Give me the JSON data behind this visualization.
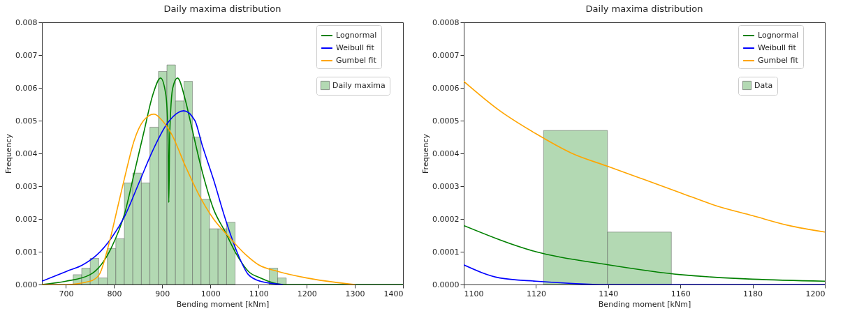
{
  "chart_data": [
    {
      "type": "histogram",
      "title": "Daily maxima distribution",
      "xlabel": "Bending moment [kNm]",
      "ylabel": "Frequency",
      "xlim": [
        650,
        1400
      ],
      "xticks": [
        700,
        800,
        900,
        1000,
        1100,
        1200,
        1300,
        1400
      ],
      "ylim": [
        0,
        0.008
      ],
      "yticks": [
        {
          "value": 0,
          "label": "0.000"
        },
        0.001,
        0.002,
        0.003,
        0.004,
        0.005,
        0.006,
        0.007,
        0.008
      ],
      "grid": false,
      "legend": "top right",
      "series": [
        {
          "type": "line",
          "name": "Lognormal",
          "color": "#008000",
          "x": [
            650,
            700,
            750,
            793.5,
            822.5,
            841.8,
            861,
            880.6,
            896.6,
            907.3,
            912,
            913.6,
            915.5,
            921.8,
            931.5,
            948.4,
            958,
            982,
            1006.5,
            1031,
            1055,
            1079,
            1103.5,
            1151,
            1200,
            1300,
            1400
          ],
          "values": [
            0,
            0.0001,
            0.0003,
            0.0011,
            0.0022,
            0.0034,
            0.0046,
            0.0058,
            0.0063,
            0.0058,
            0.0046,
            0.0025,
            0.0046,
            0.006,
            0.0063,
            0.0056,
            0.005,
            0.0035,
            0.0023,
            0.0016,
            0.0009,
            0.0004,
            0.0002,
            0,
            0,
            0,
            0
          ]
        },
        {
          "type": "line",
          "name": "Weibull fit",
          "color": "#0000ff",
          "x": [
            650,
            701,
            735,
            764,
            793.5,
            822.5,
            851.6,
            880.6,
            909.7,
            944.6,
            967.8,
            982,
            1006.5,
            1031,
            1055,
            1079,
            1103.5,
            1150
          ],
          "values": [
            0.0001,
            0.0004,
            0.0006,
            0.0009,
            0.0014,
            0.0021,
            0.0031,
            0.0041,
            0.0049,
            0.0053,
            0.005,
            0.0043,
            0.0032,
            0.002,
            0.001,
            0.0003,
            0.0001,
            0
          ]
        },
        {
          "type": "line",
          "name": "Gumbel fit",
          "color": "#ffa500",
          "x": [
            650,
            700,
            750,
            769,
            788.5,
            808,
            822.5,
            841.8,
            861,
            883,
            900,
            919,
            948.4,
            977.5,
            1006.5,
            1035.6,
            1074,
            1100,
            1140,
            1200,
            1300
          ],
          "values": [
            0,
            0,
            0.0001,
            0.0003,
            0.0012,
            0.0024,
            0.0033,
            0.0044,
            0.005,
            0.0052,
            0.005,
            0.0046,
            0.0036,
            0.0027,
            0.002,
            0.0015,
            0.0009,
            0.0006,
            0.0004,
            0.0002,
            0
          ]
        },
        {
          "type": "histogram",
          "name": "Daily maxima",
          "color": "#b3d9b3",
          "bins": [
            715,
            732.7,
            750.4,
            768.1,
            785.8,
            803.5,
            821.2,
            838.9,
            856.6,
            874.3,
            892,
            909.7,
            927.4,
            945.1,
            962.8,
            980.5,
            998.2,
            1015.9,
            1033.6,
            1051.3,
            1069,
            1086.7,
            1104.4,
            1122.1,
            1139.8,
            1157.5
          ],
          "values": [
            0.0003,
            0.0005,
            0.0008,
            0.0002,
            0.0011,
            0.0014,
            0.0031,
            0.0034,
            0.0031,
            0.0048,
            0.0065,
            0.0067,
            0.0056,
            0.0062,
            0.0045,
            0.0026,
            0.0017,
            0.0017,
            0.0019,
            0,
            0,
            0,
            0,
            0.0005,
            0.0002
          ]
        }
      ]
    },
    {
      "type": "histogram",
      "title": "Daily maxima distribution",
      "xlabel": "Bending moment [kNm]",
      "ylabel": "Frequency",
      "xlim": [
        1100,
        1200
      ],
      "xticks": [
        1100,
        1120,
        1140,
        1160,
        1180,
        1200
      ],
      "ylim": [
        0,
        0.0008
      ],
      "yticks": [
        {
          "value": 0,
          "label": "0.0000"
        },
        0.0001,
        0.0002,
        0.0003,
        0.0004,
        0.0005,
        0.0006,
        0.0007,
        0.0008
      ],
      "grid": false,
      "legend": "top right",
      "series": [
        {
          "type": "line",
          "name": "Lognormal",
          "color": "#008000",
          "x": [
            1100,
            1120,
            1140,
            1160,
            1200
          ],
          "values": [
            0.00018,
            0.0001,
            6e-05,
            3e-05,
            1e-05
          ]
        },
        {
          "type": "line",
          "name": "Weibull fit",
          "color": "#0000ff",
          "x": [
            1100,
            1110,
            1120,
            1140,
            1200
          ],
          "values": [
            6e-05,
            2e-05,
            1e-05,
            0,
            0
          ]
        },
        {
          "type": "line",
          "name": "Gumbel fit",
          "color": "#ffa500",
          "x": [
            1100,
            1110,
            1120,
            1130,
            1140,
            1150,
            1160,
            1170,
            1180,
            1190,
            1200
          ],
          "values": [
            0.00062,
            0.00053,
            0.00046,
            0.0004,
            0.00036,
            0.00032,
            0.00028,
            0.00024,
            0.00021,
            0.00018,
            0.00016
          ]
        },
        {
          "type": "histogram",
          "name": "Data",
          "color": "#b3d9b3",
          "bins": [
            1122.1,
            1139.8,
            1157.5
          ],
          "values": [
            0.00047,
            0.00016
          ]
        }
      ]
    }
  ]
}
